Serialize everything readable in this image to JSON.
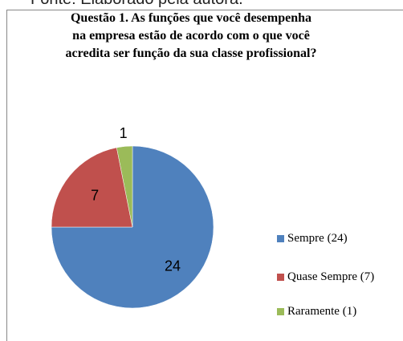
{
  "note": "Fonte: Elaborado pela autora.",
  "chart_data": {
    "type": "pie",
    "title": "Questão 1. As funções que você desempenha na empresa estão de acordo com o que você acredita ser função da sua classe profissional?",
    "series": [
      {
        "name": "Sempre (24)",
        "color": "#4f81bd",
        "values": [
          24
        ]
      },
      {
        "name": "Quase Sempre (7)",
        "color": "#c0504d",
        "values": [
          7
        ]
      },
      {
        "name": "Raramente (1)",
        "color": "#9bbb59",
        "values": [
          1
        ]
      }
    ],
    "legend": "right"
  }
}
